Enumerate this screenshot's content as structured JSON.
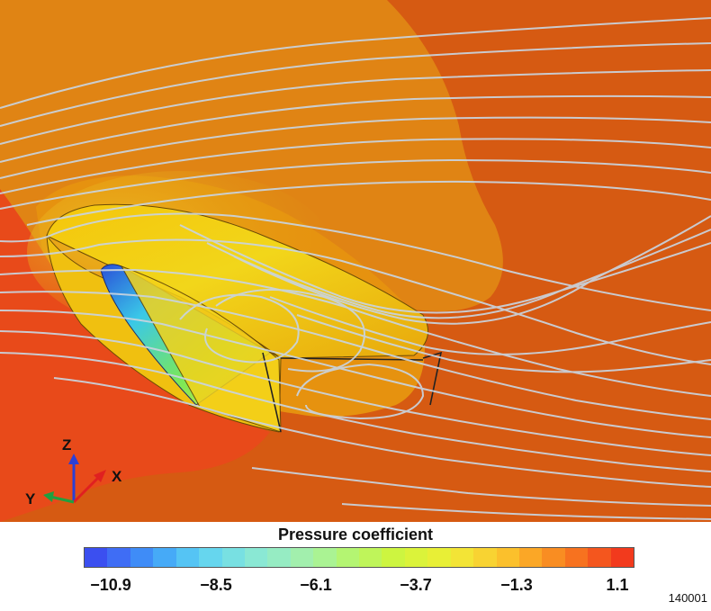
{
  "legend": {
    "title": "Pressure coefficient",
    "ticks": [
      "−10.9",
      "−8.5",
      "−6.1",
      "−3.7",
      "−1.3",
      "1.1"
    ],
    "colors": [
      "#3b4ff0",
      "#3f6df5",
      "#3f8cf7",
      "#46aaf7",
      "#55c4f4",
      "#66d6ee",
      "#78e0e2",
      "#8ae8d4",
      "#96ecc3",
      "#a2efad",
      "#aaf393",
      "#b4f572",
      "#bff55a",
      "#cdf540",
      "#dbf33a",
      "#e8ef36",
      "#f3e436",
      "#f8d332",
      "#fbc02c",
      "#fba726",
      "#f98d22",
      "#f7721f",
      "#f4561e",
      "#f23a1d"
    ]
  },
  "axes": {
    "z": "Z",
    "x": "X",
    "y": "Y"
  },
  "figure_id": "140001"
}
